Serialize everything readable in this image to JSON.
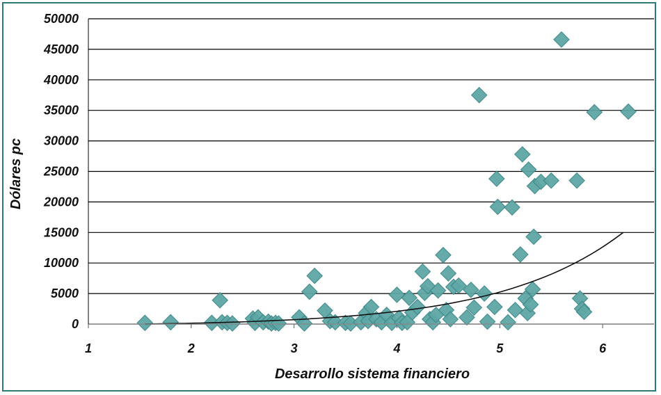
{
  "chart_data": {
    "type": "scatter",
    "title": "",
    "xlabel": "Desarrollo sistema financiero",
    "ylabel": "Dólares pc",
    "xlim": [
      1,
      6.5
    ],
    "ylim": [
      0,
      50000
    ],
    "x_ticks": [
      "1",
      "2",
      "3",
      "4",
      "5",
      "6"
    ],
    "y_ticks": [
      "0",
      "5000",
      "10000",
      "15000",
      "20000",
      "25000",
      "30000",
      "35000",
      "40000",
      "45000",
      "50000"
    ],
    "grid": "horizontal",
    "legend": "none",
    "marker_color": "#5fa6a6",
    "trend_color": "#111111",
    "trendline": {
      "type": "exponential",
      "x": [
        1.55,
        6.2
      ],
      "y": [
        0,
        15000
      ]
    },
    "series": [
      {
        "points": [
          [
            1.55,
            200
          ],
          [
            1.8,
            300
          ],
          [
            2.2,
            200
          ],
          [
            2.28,
            3900
          ],
          [
            2.3,
            300
          ],
          [
            2.35,
            200
          ],
          [
            2.4,
            100
          ],
          [
            2.6,
            900
          ],
          [
            2.62,
            200
          ],
          [
            2.65,
            1100
          ],
          [
            2.7,
            300
          ],
          [
            2.75,
            400
          ],
          [
            2.78,
            100
          ],
          [
            2.82,
            200
          ],
          [
            2.85,
            100
          ],
          [
            3.05,
            1100
          ],
          [
            3.1,
            100
          ],
          [
            3.15,
            5300
          ],
          [
            3.2,
            7900
          ],
          [
            3.3,
            2200
          ],
          [
            3.35,
            500
          ],
          [
            3.4,
            300
          ],
          [
            3.5,
            200
          ],
          [
            3.55,
            100
          ],
          [
            3.65,
            300
          ],
          [
            3.7,
            1800
          ],
          [
            3.72,
            500
          ],
          [
            3.75,
            2800
          ],
          [
            3.8,
            800
          ],
          [
            3.85,
            300
          ],
          [
            3.9,
            1500
          ],
          [
            3.95,
            200
          ],
          [
            4.0,
            4800
          ],
          [
            4.02,
            1000
          ],
          [
            4.05,
            200
          ],
          [
            4.1,
            300
          ],
          [
            4.12,
            4300
          ],
          [
            4.15,
            1900
          ],
          [
            4.2,
            2800
          ],
          [
            4.25,
            8600
          ],
          [
            4.27,
            5100
          ],
          [
            4.3,
            6200
          ],
          [
            4.32,
            800
          ],
          [
            4.35,
            300
          ],
          [
            4.38,
            1500
          ],
          [
            4.4,
            5500
          ],
          [
            4.45,
            11300
          ],
          [
            4.48,
            2300
          ],
          [
            4.5,
            8300
          ],
          [
            4.52,
            800
          ],
          [
            4.55,
            6100
          ],
          [
            4.6,
            6300
          ],
          [
            4.68,
            1100
          ],
          [
            4.72,
            5600
          ],
          [
            4.75,
            2700
          ],
          [
            4.8,
            37500
          ],
          [
            4.85,
            5000
          ],
          [
            4.88,
            400
          ],
          [
            4.95,
            2800
          ],
          [
            4.97,
            23800
          ],
          [
            4.98,
            19200
          ],
          [
            5.08,
            300
          ],
          [
            5.12,
            19100
          ],
          [
            5.15,
            2300
          ],
          [
            5.2,
            11400
          ],
          [
            5.22,
            27800
          ],
          [
            5.25,
            4200
          ],
          [
            5.27,
            1800
          ],
          [
            5.28,
            25300
          ],
          [
            5.3,
            3200
          ],
          [
            5.32,
            5700
          ],
          [
            5.33,
            14300
          ],
          [
            5.34,
            22600
          ],
          [
            5.4,
            23300
          ],
          [
            5.5,
            23500
          ],
          [
            5.6,
            46600
          ],
          [
            5.75,
            23500
          ],
          [
            5.78,
            4200
          ],
          [
            5.8,
            2500
          ],
          [
            5.82,
            2000
          ],
          [
            5.92,
            34700
          ],
          [
            6.25,
            34800
          ]
        ]
      }
    ]
  }
}
